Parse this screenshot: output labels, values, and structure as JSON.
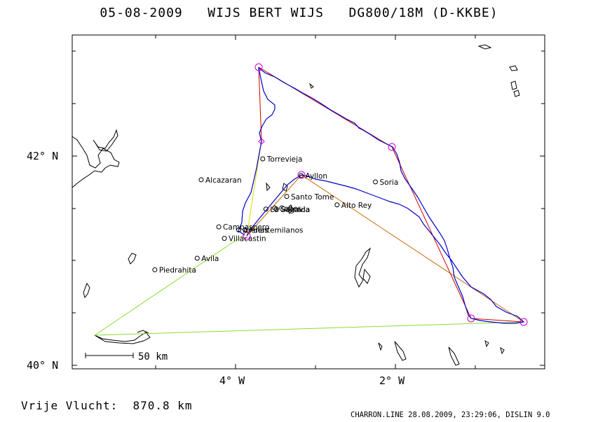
{
  "header": {
    "date": "05-08-2009",
    "pilot": "WIJS BERT WIJS",
    "glider": "DG800/18M (D-KKBE)"
  },
  "map": {
    "lat_ticks": [
      {
        "label": "42° N",
        "lat": 42
      },
      {
        "label": "40° N",
        "lat": 40
      }
    ],
    "lon_ticks": [
      {
        "label": "4° W",
        "lon": -4
      },
      {
        "label": "2° W",
        "lon": -2
      }
    ],
    "scale_bar": "50 km",
    "places": [
      {
        "name": "Soria",
        "lon": -2.25,
        "lat": 41.76
      },
      {
        "name": "Torrevieja",
        "lon": -3.66,
        "lat": 41.98
      },
      {
        "name": "Alcazaran",
        "lon": -4.43,
        "lat": 41.78
      },
      {
        "name": "Ayllon",
        "lon": -3.18,
        "lat": 41.82
      },
      {
        "name": "Santo Tome",
        "lon": -3.36,
        "lat": 41.62
      },
      {
        "name": "Alto Rey",
        "lon": -2.73,
        "lat": 41.54
      },
      {
        "name": "La Salceda",
        "lon": -3.62,
        "lat": 41.5
      },
      {
        "name": "Cobos",
        "lon": -3.51,
        "lat": 41.51
      },
      {
        "name": "Segovia",
        "lon": -3.49,
        "lat": 41.5
      },
      {
        "name": "Campaspero",
        "lon": -4.21,
        "lat": 41.33
      },
      {
        "name": "Arenas",
        "lon": -3.96,
        "lat": 41.3
      },
      {
        "name": "Fuentemilanos",
        "lon": -3.88,
        "lat": 41.3
      },
      {
        "name": "Villacastin",
        "lon": -4.14,
        "lat": 41.22
      },
      {
        "name": "Avila",
        "lon": -4.48,
        "lat": 41.03
      },
      {
        "name": "Piedrahita",
        "lon": -5.01,
        "lat": 40.92
      }
    ],
    "task_points": [
      {
        "lon": -5.5,
        "lat": 40.29
      },
      {
        "lon": -3.97,
        "lat": 41.24
      },
      {
        "lon": -3.18,
        "lat": 41.83
      },
      {
        "lon": -0.76,
        "lat": 40.41
      },
      {
        "lon": -1.12,
        "lat": 40.44
      },
      {
        "lon": -1.98,
        "lat": 42.08
      },
      {
        "lon": -3.71,
        "lat": 42.84
      },
      {
        "lon": -3.69,
        "lat": 42.14
      }
    ],
    "colors": {
      "track": "#0000cc",
      "task_leg": "#cc0000",
      "task_leg_alt": "#cc6600",
      "start_leg": "#88dd33",
      "turnpoint": "#cc00cc",
      "coast": "#000000"
    }
  },
  "stats": {
    "label": "Vrije Vlucht:",
    "distance": "870.8 km"
  },
  "footer": "CHARRON.LINE 28.08.2009, 23:29:06, DISLIN 9.0"
}
